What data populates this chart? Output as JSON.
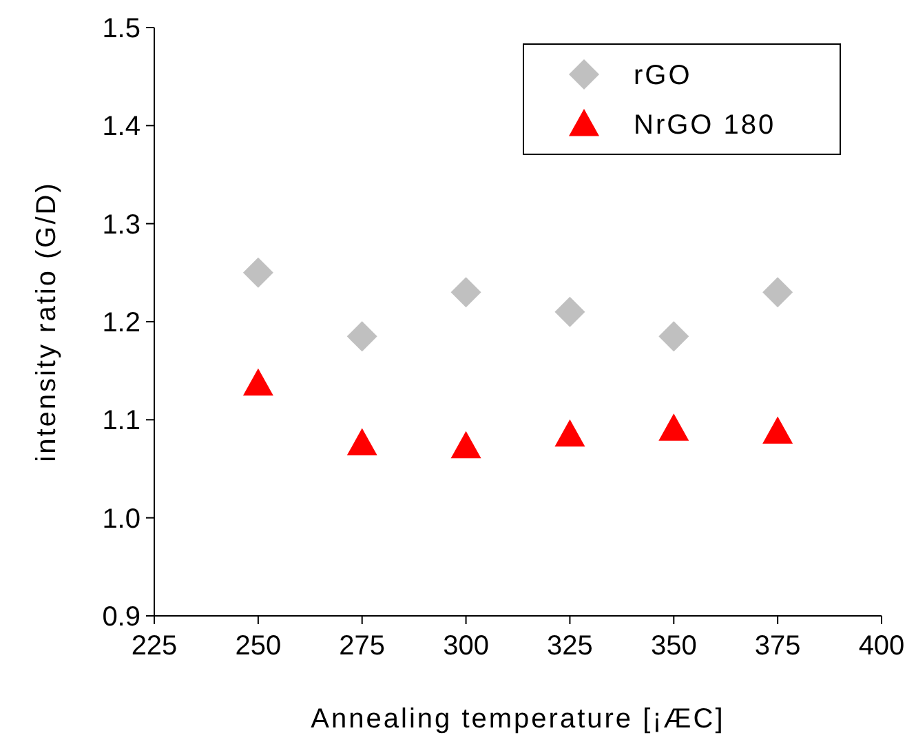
{
  "chart_data": {
    "type": "scatter",
    "xlabel": "Annealing temperature [¡ÆC]",
    "ylabel": "intensity ratio (G/D)",
    "x": [
      250,
      275,
      300,
      325,
      350,
      375
    ],
    "series": [
      {
        "name": "rGO",
        "color": "#c0c0c0",
        "marker": "diamond",
        "values": [
          1.25,
          1.185,
          1.23,
          1.21,
          1.185,
          1.23
        ]
      },
      {
        "name": "NrGO 180",
        "color": "#ff0000",
        "marker": "triangle",
        "values": [
          1.137,
          1.076,
          1.073,
          1.085,
          1.091,
          1.088
        ]
      }
    ],
    "xlim": [
      225,
      400
    ],
    "xticks": [
      225,
      250,
      275,
      300,
      325,
      350,
      375,
      400
    ],
    "ylim": [
      0.9,
      1.5
    ],
    "yticks": [
      {
        "value": 0.9,
        "label": "0.9"
      },
      {
        "value": 1,
        "label": "1.0"
      },
      {
        "value": 1.1,
        "label": "1.1"
      },
      {
        "value": 1.2,
        "label": "1.2"
      },
      {
        "value": 1.3,
        "label": "1.3"
      },
      {
        "value": 1.4,
        "label": "1.4"
      },
      1.5
    ],
    "grid": false,
    "legend": "top right"
  }
}
